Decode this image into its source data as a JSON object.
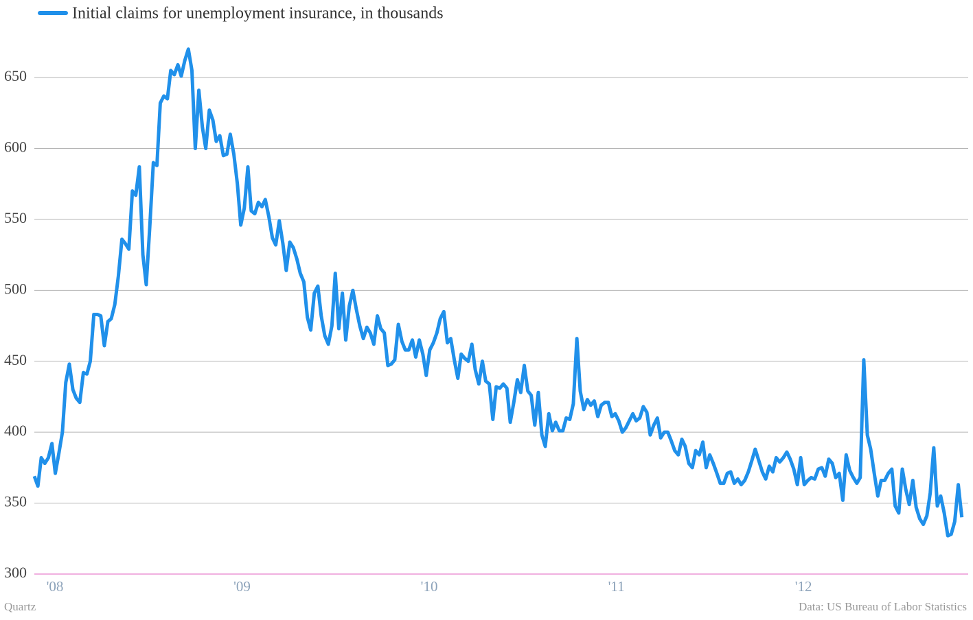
{
  "chart_data": {
    "type": "line",
    "series": [
      {
        "name": "Initial claims for unemployment insurance, in thousands",
        "color": "#2090ea",
        "values": [
          369,
          362,
          382,
          378,
          382,
          392,
          371,
          385,
          400,
          435,
          448,
          430,
          424,
          421,
          442,
          441,
          450,
          483,
          483,
          482,
          461,
          478,
          480,
          490,
          510,
          536,
          533,
          529,
          570,
          567,
          587,
          525,
          504,
          545,
          590,
          588,
          632,
          637,
          635,
          655,
          652,
          659,
          651,
          662,
          670,
          655,
          600,
          641,
          615,
          600,
          627,
          620,
          605,
          609,
          595,
          596,
          610,
          596,
          575,
          546,
          558,
          587,
          556,
          554,
          562,
          559,
          564,
          552,
          537,
          532,
          549,
          533,
          514,
          534,
          530,
          522,
          512,
          506,
          481,
          472,
          498,
          503,
          482,
          468,
          462,
          475,
          512,
          473,
          498,
          465,
          489,
          500,
          487,
          475,
          466,
          474,
          470,
          462,
          482,
          473,
          470,
          447,
          448,
          451,
          476,
          464,
          458,
          458,
          465,
          453,
          465,
          455,
          440,
          458,
          463,
          470,
          480,
          485,
          463,
          466,
          451,
          438,
          455,
          452,
          450,
          462,
          444,
          434,
          450,
          436,
          434,
          409,
          432,
          431,
          434,
          431,
          407,
          421,
          437,
          428,
          447,
          429,
          426,
          405,
          428,
          398,
          390,
          413,
          401,
          407,
          401,
          401,
          410,
          409,
          420,
          466,
          429,
          416,
          423,
          419,
          422,
          411,
          419,
          421,
          421,
          411,
          413,
          408,
          400,
          403,
          408,
          413,
          408,
          410,
          418,
          414,
          398,
          405,
          410,
          396,
          400,
          400,
          394,
          387,
          384,
          395,
          390,
          378,
          375,
          387,
          384,
          393,
          375,
          384,
          378,
          371,
          364,
          364,
          371,
          372,
          364,
          367,
          363,
          366,
          372,
          380,
          388,
          380,
          372,
          367,
          376,
          372,
          382,
          379,
          382,
          386,
          381,
          374,
          363,
          382,
          363,
          366,
          368,
          367,
          374,
          375,
          369,
          381,
          378,
          368,
          371,
          352,
          384,
          373,
          368,
          364,
          368,
          451,
          398,
          388,
          371,
          355,
          366,
          366,
          371,
          374,
          348,
          343,
          374,
          360,
          349,
          366,
          347,
          339,
          335,
          341,
          357,
          389,
          348,
          355,
          343,
          327,
          328,
          337,
          363,
          340
        ]
      }
    ],
    "x": [
      2007.89,
      2007.909,
      2007.927,
      2007.946,
      2007.965,
      2007.984,
      2008.002,
      2008.021,
      2008.04,
      2008.058,
      2008.077,
      2008.096,
      2008.114,
      2008.133,
      2008.152,
      2008.171,
      2008.189,
      2008.208,
      2008.227,
      2008.245,
      2008.264,
      2008.283,
      2008.301,
      2008.32,
      2008.339,
      2008.358,
      2008.376,
      2008.395,
      2008.414,
      2008.432,
      2008.451,
      2008.47,
      2008.488,
      2008.507,
      2008.526,
      2008.545,
      2008.563,
      2008.582,
      2008.601,
      2008.619,
      2008.638,
      2008.657,
      2008.675,
      2008.694,
      2008.713,
      2008.732,
      2008.75,
      2008.769,
      2008.788,
      2008.806,
      2008.825,
      2008.844,
      2008.862,
      2008.881,
      2008.9,
      2008.919,
      2008.937,
      2008.956,
      2008.975,
      2008.993,
      2009.012,
      2009.031,
      2009.049,
      2009.068,
      2009.087,
      2009.106,
      2009.124,
      2009.143,
      2009.162,
      2009.18,
      2009.199,
      2009.218,
      2009.236,
      2009.255,
      2009.274,
      2009.293,
      2009.311,
      2009.33,
      2009.349,
      2009.367,
      2009.386,
      2009.405,
      2009.423,
      2009.442,
      2009.461,
      2009.48,
      2009.498,
      2009.517,
      2009.536,
      2009.554,
      2009.573,
      2009.592,
      2009.61,
      2009.629,
      2009.648,
      2009.667,
      2009.685,
      2009.704,
      2009.723,
      2009.741,
      2009.76,
      2009.779,
      2009.797,
      2009.816,
      2009.835,
      2009.854,
      2009.872,
      2009.891,
      2009.91,
      2009.928,
      2009.947,
      2009.966,
      2009.984,
      2010.003,
      2010.022,
      2010.041,
      2010.059,
      2010.078,
      2010.097,
      2010.115,
      2010.134,
      2010.153,
      2010.171,
      2010.19,
      2010.209,
      2010.228,
      2010.246,
      2010.265,
      2010.284,
      2010.302,
      2010.321,
      2010.34,
      2010.358,
      2010.377,
      2010.396,
      2010.415,
      2010.433,
      2010.452,
      2010.471,
      2010.489,
      2010.508,
      2010.527,
      2010.545,
      2010.564,
      2010.583,
      2010.602,
      2010.62,
      2010.639,
      2010.658,
      2010.676,
      2010.695,
      2010.714,
      2010.732,
      2010.751,
      2010.77,
      2010.789,
      2010.807,
      2010.826,
      2010.845,
      2010.863,
      2010.882,
      2010.901,
      2010.919,
      2010.938,
      2010.957,
      2010.976,
      2010.994,
      2011.013,
      2011.032,
      2011.05,
      2011.069,
      2011.088,
      2011.106,
      2011.125,
      2011.144,
      2011.163,
      2011.181,
      2011.2,
      2011.219,
      2011.237,
      2011.256,
      2011.275,
      2011.293,
      2011.312,
      2011.331,
      2011.35,
      2011.368,
      2011.387,
      2011.406,
      2011.424,
      2011.443,
      2011.462,
      2011.48,
      2011.499,
      2011.518,
      2011.537,
      2011.555,
      2011.574,
      2011.593,
      2011.611,
      2011.63,
      2011.649,
      2011.667,
      2011.686,
      2011.705,
      2011.724,
      2011.742,
      2011.761,
      2011.78,
      2011.798,
      2011.817,
      2011.836,
      2011.854,
      2011.873,
      2011.892,
      2011.911,
      2011.929,
      2011.948,
      2011.967,
      2011.985,
      2012.004,
      2012.023,
      2012.041,
      2012.06,
      2012.079,
      2012.098,
      2012.116,
      2012.135,
      2012.154,
      2012.172,
      2012.191,
      2012.21,
      2012.228,
      2012.247,
      2012.266,
      2012.285,
      2012.303,
      2012.322,
      2012.341,
      2012.359,
      2012.378,
      2012.397,
      2012.415,
      2012.434,
      2012.453,
      2012.472,
      2012.49,
      2012.509,
      2012.528,
      2012.546,
      2012.565,
      2012.584,
      2012.602,
      2012.621,
      2012.64,
      2012.659,
      2012.677,
      2012.696,
      2012.715,
      2012.733,
      2012.752,
      2012.771,
      2012.789,
      2012.808,
      2012.827,
      2012.846
    ],
    "xlim": [
      2007.89,
      2012.88
    ],
    "xticks": [
      {
        "value": 2008,
        "label": "'08"
      },
      {
        "value": 2009,
        "label": "'09"
      },
      {
        "value": 2010,
        "label": "'10"
      },
      {
        "value": 2011,
        "label": "'11"
      },
      {
        "value": 2012,
        "label": "'12"
      }
    ],
    "ylim": [
      300,
      680
    ],
    "yticks": [
      300,
      350,
      400,
      450,
      500,
      550,
      600,
      650
    ],
    "grid": true,
    "credit": "Quartz",
    "source": "Data: US Bureau of Labor Statistics"
  }
}
